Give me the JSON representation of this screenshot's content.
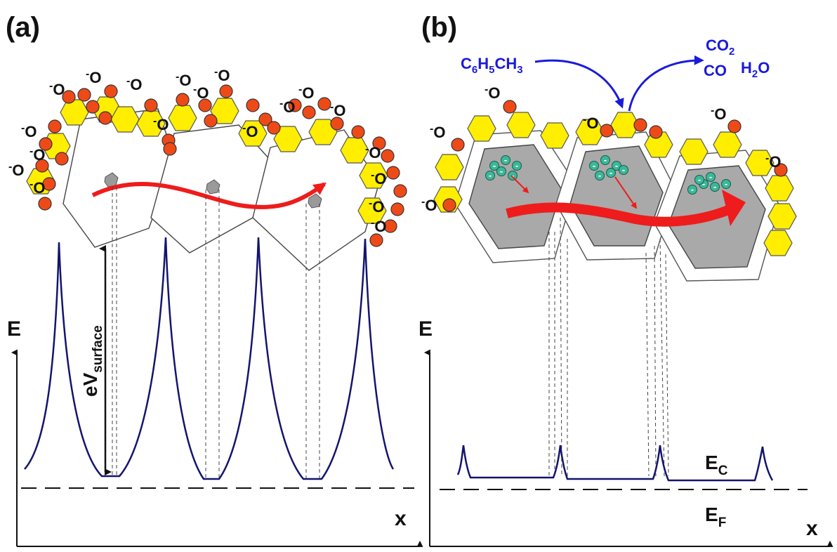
{
  "panel_a": {
    "label": "(a)",
    "y_axis": "E",
    "x_axis": "x",
    "barrier_label": "eV",
    "barrier_sub": "surface",
    "adsorbate": "O",
    "charge": "-"
  },
  "panel_b": {
    "label": "(b)",
    "y_axis": "E",
    "x_axis": "x",
    "reactant": {
      "a": "C",
      "a_n": "6",
      "b": "H",
      "b_n": "5",
      "c": "CH",
      "c_n": "3"
    },
    "products": {
      "co2": "CO",
      "co2_n": "2",
      "co": "CO",
      "h2o_a": "H",
      "h2o_n": "2",
      "h2o_b": "O"
    },
    "ec_main": "E",
    "ec_sub": "C",
    "ef_main": "E",
    "ef_sub": "F",
    "electron": "-",
    "adsorbate": "O",
    "charge": "-"
  },
  "colors": {
    "band": "#14146e",
    "arrow": "#ee1c1c",
    "chem": "#1a1adb",
    "oxygen": "#ee4a18",
    "hexagon": "#ffee00",
    "grain_core": "#a9a9a9",
    "electron": "#3bb89a"
  }
}
